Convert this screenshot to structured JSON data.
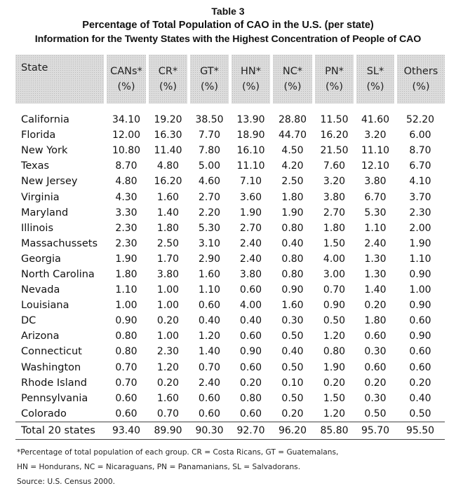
{
  "titles": {
    "line1": "Table 3",
    "line2": "Percentage of Total Population of CAO in the U.S. (per state)",
    "line3": "Information for the Twenty States with the Highest Concentration of People of CAO"
  },
  "table": {
    "columns": [
      {
        "label": "State",
        "unit": ""
      },
      {
        "label": "CANs*",
        "unit": "(%)"
      },
      {
        "label": "CR*",
        "unit": "(%)"
      },
      {
        "label": "GT*",
        "unit": "(%)"
      },
      {
        "label": "HN*",
        "unit": "(%)"
      },
      {
        "label": "NC*",
        "unit": "(%)"
      },
      {
        "label": "PN*",
        "unit": "(%)"
      },
      {
        "label": "SL*",
        "unit": "(%)"
      },
      {
        "label": "Others",
        "unit": "(%)"
      }
    ],
    "rows": [
      {
        "state": "California",
        "values": [
          "34.10",
          "19.20",
          "38.50",
          "13.90",
          "28.80",
          "11.50",
          "41.60",
          "52.20"
        ]
      },
      {
        "state": "Florida",
        "values": [
          "12.00",
          "16.30",
          "7.70",
          "18.90",
          "44.70",
          "16.20",
          "3.20",
          "6.00"
        ]
      },
      {
        "state": "New York",
        "values": [
          "10.80",
          "11.40",
          "7.80",
          "16.10",
          "4.50",
          "21.50",
          "11.10",
          "8.70"
        ]
      },
      {
        "state": "Texas",
        "values": [
          "8.70",
          "4.80",
          "5.00",
          "11.10",
          "4.20",
          "7.60",
          "12.10",
          "6.70"
        ]
      },
      {
        "state": "New Jersey",
        "values": [
          "4.80",
          "16.20",
          "4.60",
          "7.10",
          "2.50",
          "3.20",
          "3.80",
          "4.10"
        ]
      },
      {
        "state": "Virginia",
        "values": [
          "4.30",
          "1.60",
          "2.70",
          "3.60",
          "1.80",
          "3.80",
          "6.70",
          "3.70"
        ]
      },
      {
        "state": "Maryland",
        "values": [
          "3.30",
          "1.40",
          "2.20",
          "1.90",
          "1.90",
          "2.70",
          "5.30",
          "2.30"
        ]
      },
      {
        "state": "Illinois",
        "values": [
          "2.30",
          "1.80",
          "5.30",
          "2.70",
          "0.80",
          "1.80",
          "1.10",
          "2.00"
        ]
      },
      {
        "state": "Massachussets",
        "values": [
          "2.30",
          "2.50",
          "3.10",
          "2.40",
          "0.40",
          "1.50",
          "2.40",
          "1.90"
        ]
      },
      {
        "state": "Georgia",
        "values": [
          "1.90",
          "1.70",
          "2.90",
          "2.40",
          "0.80",
          "4.00",
          "1.30",
          "1.10"
        ]
      },
      {
        "state": "North Carolina",
        "values": [
          "1.80",
          "3.80",
          "1.60",
          "3.80",
          "0.80",
          "3.00",
          "1.30",
          "0.90"
        ]
      },
      {
        "state": "Nevada",
        "values": [
          "1.10",
          "1.00",
          "1.10",
          "0.60",
          "0.90",
          "0.70",
          "1.40",
          "1.00"
        ]
      },
      {
        "state": "Louisiana",
        "values": [
          "1.00",
          "1.00",
          "0.60",
          "4.00",
          "1.60",
          "0.90",
          "0.20",
          "0.90"
        ]
      },
      {
        "state": "DC",
        "values": [
          "0.90",
          "0.20",
          "0.40",
          "0.40",
          "0.30",
          "0.50",
          "1.80",
          "0.60"
        ]
      },
      {
        "state": "Arizona",
        "values": [
          "0.80",
          "1.00",
          "1.20",
          "0.60",
          "0.50",
          "1.20",
          "0.60",
          "0.90"
        ]
      },
      {
        "state": "Connecticut",
        "values": [
          "0.80",
          "2.30",
          "1.40",
          "0.90",
          "0.40",
          "0.80",
          "0.30",
          "0.60"
        ]
      },
      {
        "state": "Washington",
        "values": [
          "0.70",
          "1.20",
          "0.70",
          "0.60",
          "0.50",
          "1.90",
          "0.60",
          "0.60"
        ]
      },
      {
        "state": "Rhode Island",
        "values": [
          "0.70",
          "0.20",
          "2.40",
          "0.20",
          "0.10",
          "0.20",
          "0.20",
          "0.20"
        ]
      },
      {
        "state": "Pennsylvania",
        "values": [
          "0.60",
          "1.60",
          "0.60",
          "0.80",
          "0.50",
          "1.50",
          "0.30",
          "0.40"
        ]
      },
      {
        "state": "Colorado",
        "values": [
          "0.60",
          "0.70",
          "0.60",
          "0.60",
          "0.20",
          "1.20",
          "0.50",
          "0.50"
        ]
      }
    ],
    "total": {
      "state": "Total 20 states",
      "values": [
        "93.40",
        "89.90",
        "90.30",
        "92.70",
        "96.20",
        "85.80",
        "95.70",
        "95.50"
      ]
    }
  },
  "notes": {
    "line1": "*Percentage of total population of each group. CR = Costa Ricans, GT = Guatemalans,",
    "line2": "HN = Hondurans, NC = Nicaraguans, PN = Panamanians, SL = Salvadorans.",
    "line3": "Source: U.S. Census 2000."
  }
}
